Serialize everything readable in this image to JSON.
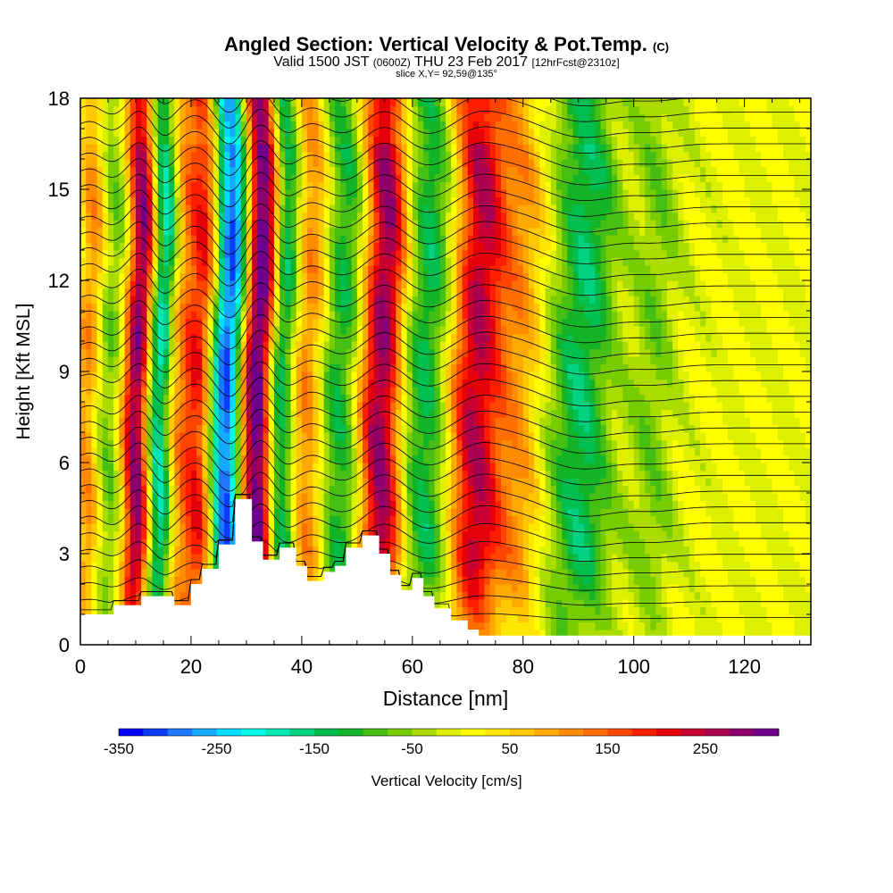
{
  "titles": {
    "main": "Angled Section: Vertical Velocity & Pot.Temp.",
    "main_suffix": "(C)",
    "valid_a": "Valid 1500 JST",
    "valid_b": "(0600Z)",
    "valid_c": "THU 23 Feb 2017",
    "valid_d": "[12hrFcst@2310z]",
    "slice": "slice X,Y= 92,59@135°"
  },
  "chart_data": {
    "type": "heatmap",
    "title": "Angled Section: Vertical Velocity & Pot.Temp.",
    "xlabel": "Distance [nm]",
    "ylabel": "Height [Kft MSL]",
    "xlim": [
      0,
      132
    ],
    "ylim": [
      0,
      18
    ],
    "xticks": [
      0,
      20,
      40,
      60,
      80,
      100,
      120
    ],
    "yticks": [
      0,
      3,
      6,
      9,
      12,
      15,
      18
    ],
    "colorbar": {
      "label": "Vertical Velocity [cm/s]",
      "min": -350,
      "max": 325,
      "step": 25,
      "tick_values": [
        -350,
        -250,
        -150,
        -50,
        50,
        150,
        250
      ],
      "tick_labels": [
        "-350",
        "-250",
        "-150",
        "-50",
        "50",
        "150",
        "250"
      ],
      "colors": [
        "#0000ff",
        "#0a3cff",
        "#1e78ff",
        "#14aaff",
        "#00dcff",
        "#00ffe6",
        "#00e6b4",
        "#00d282",
        "#00be50",
        "#14b428",
        "#46be14",
        "#78cd00",
        "#aadc00",
        "#dcf000",
        "#ffff00",
        "#ffe600",
        "#ffc800",
        "#ffaa00",
        "#ff8c00",
        "#ff6e00",
        "#ff4600",
        "#ff1e00",
        "#e6000a",
        "#c80032",
        "#aa0050",
        "#8c006e",
        "#6e008c"
      ]
    },
    "velocity_bands": [
      {
        "x": 2,
        "w": 1.5,
        "amp": 110
      },
      {
        "x": 6,
        "w": 1.8,
        "amp": -70
      },
      {
        "x": 11,
        "w": 1.8,
        "amp": 300
      },
      {
        "x": 15,
        "w": 1.8,
        "amp": -240
      },
      {
        "x": 18,
        "w": 2.0,
        "amp": 120
      },
      {
        "x": 22.5,
        "w": 2.0,
        "amp": 230
      },
      {
        "x": 27,
        "w": 2.6,
        "amp": -330
      },
      {
        "x": 30.5,
        "w": 1.6,
        "amp": 140
      },
      {
        "x": 33,
        "w": 1.8,
        "amp": 320
      },
      {
        "x": 37,
        "w": 2.0,
        "amp": -180
      },
      {
        "x": 41.5,
        "w": 2.5,
        "amp": 140
      },
      {
        "x": 47.5,
        "w": 3.0,
        "amp": -130
      },
      {
        "x": 55,
        "w": 2.8,
        "amp": 290
      },
      {
        "x": 63,
        "w": 3.5,
        "amp": -140
      },
      {
        "x": 72,
        "w": 3.5,
        "amp": 250
      },
      {
        "x": 80,
        "w": 3.0,
        "amp": 90
      },
      {
        "x": 91,
        "w": 4.0,
        "amp": -140
      },
      {
        "x": 104,
        "w": 3.0,
        "amp": -60
      }
    ],
    "terrain": [
      [
        0,
        1
      ],
      [
        6,
        1
      ],
      [
        6,
        1.3
      ],
      [
        11,
        1.3
      ],
      [
        11,
        1.6
      ],
      [
        17,
        1.6
      ],
      [
        17,
        1.3
      ],
      [
        20,
        1.3
      ],
      [
        20,
        2
      ],
      [
        22,
        2
      ],
      [
        22,
        2.5
      ],
      [
        25,
        2.5
      ],
      [
        25,
        3.3
      ],
      [
        28,
        3.3
      ],
      [
        28,
        4.8
      ],
      [
        31,
        4.8
      ],
      [
        31,
        3.4
      ],
      [
        33,
        3.4
      ],
      [
        33,
        2.8
      ],
      [
        36,
        2.8
      ],
      [
        36,
        3.2
      ],
      [
        39,
        3.2
      ],
      [
        39,
        2.6
      ],
      [
        41,
        2.6
      ],
      [
        41,
        2.1
      ],
      [
        44,
        2.1
      ],
      [
        44,
        2.4
      ],
      [
        46,
        2.4
      ],
      [
        46,
        2.6
      ],
      [
        48,
        2.6
      ],
      [
        48,
        3.2
      ],
      [
        51,
        3.2
      ],
      [
        51,
        3.6
      ],
      [
        54,
        3.6
      ],
      [
        54,
        3.0
      ],
      [
        56,
        3.0
      ],
      [
        56,
        2.3
      ],
      [
        58,
        2.3
      ],
      [
        58,
        1.8
      ],
      [
        60,
        1.8
      ],
      [
        60,
        2.2
      ],
      [
        62,
        2.2
      ],
      [
        62,
        1.6
      ],
      [
        64,
        1.6
      ],
      [
        64,
        1.2
      ],
      [
        67,
        1.2
      ],
      [
        67,
        0.8
      ],
      [
        70,
        0.8
      ],
      [
        70,
        0.5
      ],
      [
        72,
        0.5
      ],
      [
        72,
        0.3
      ],
      [
        132,
        0.3
      ]
    ],
    "theta_contours": {
      "count": 34,
      "base": 0.9,
      "spacing": 0.52
    }
  }
}
